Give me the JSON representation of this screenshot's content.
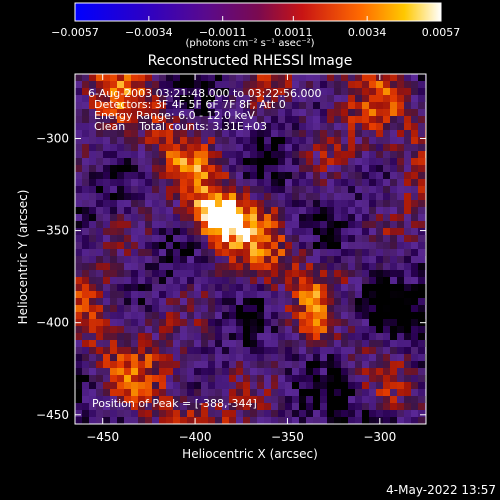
{
  "chart_data": {
    "type": "heatmap",
    "title": "Reconstructed RHESSI Image",
    "xlabel": "Heliocentric X (arcsec)",
    "ylabel": "Heliocentric Y (arcsec)",
    "xlim": [
      -465,
      -275
    ],
    "ylim": [
      -455,
      -265
    ],
    "xticks": [
      -450,
      -400,
      -350,
      -300
    ],
    "yticks": [
      -300,
      -350,
      -400,
      -450
    ],
    "colorbar": {
      "min": -0.0057,
      "max": 0.0057,
      "ticks": [
        "-0.0057",
        "-0.0034",
        "-0.0011",
        "0.0011",
        "0.0034",
        "0.0057"
      ],
      "units": "(photons cm⁻² s⁻¹ asec⁻²)"
    },
    "annotations": {
      "time_range": "6-Aug-2003 03:21:48.000 to 03:22:56.000",
      "detectors": "Detectors: 3F 4F 5F 6F 7F 8F, Att 0",
      "energy": "Energy Range: 6.0 - 12.0 keV",
      "clean": "Clean    Total counts: 3.31E+03",
      "peak": "Position of Peak = [-388,-344]"
    },
    "peak_position": [
      -388,
      -344
    ]
  },
  "footer": {
    "date": "4-May-2022 13:57"
  }
}
